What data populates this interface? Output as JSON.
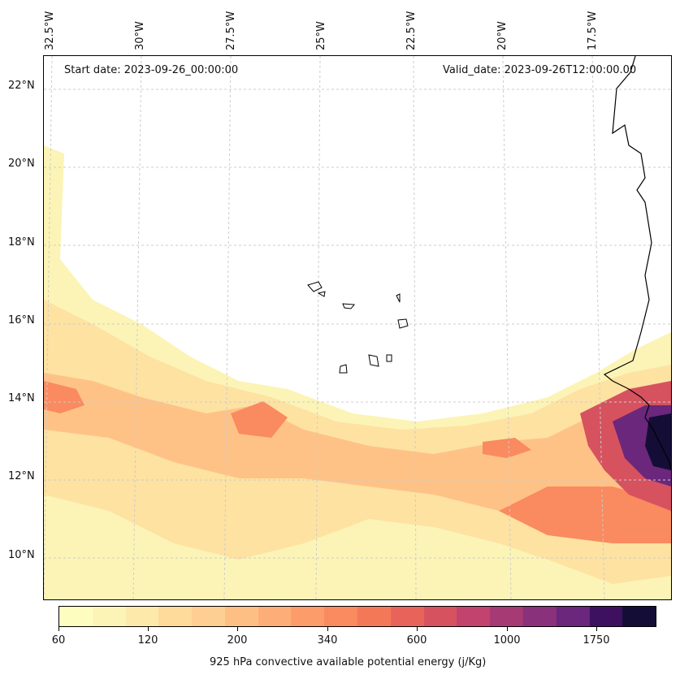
{
  "map": {
    "start_date": "Start date: 2023-09-26_00:00:00",
    "valid_date": "Valid_date: 2023-09-26T12:00:00.00",
    "lon_labels": [
      "32.5°W",
      "30°W",
      "27.5°W",
      "25°W",
      "22.5°W",
      "20°W",
      "17.5°W"
    ],
    "lat_labels": [
      "22°N",
      "20°N",
      "18°N",
      "16°N",
      "14°N",
      "12°N",
      "10°N"
    ]
  },
  "colorbar": {
    "label": "925 hPa convective available potential energy (j/Kg)",
    "ticks": [
      "60",
      "120",
      "200",
      "340",
      "600",
      "1000",
      "1750"
    ],
    "levels": [
      "#fcfdbf",
      "#fcf4b6",
      "#fde9a9",
      "#fedb9b",
      "#fecf92",
      "#febf84",
      "#fdae78",
      "#fc9c6b",
      "#fa8a5f",
      "#f37858",
      "#e8645a",
      "#d6525f",
      "#c2436d",
      "#a63a75",
      "#89317b",
      "#6a277b",
      "#3e1160",
      "#140e36"
    ]
  },
  "chart_data": {
    "type": "heatmap",
    "variable": "925 hPa convective available potential energy (j/Kg)",
    "x_range": [
      "32.5°W",
      "15.5°W"
    ],
    "y_range": [
      "9°N",
      "22.5°N"
    ],
    "max_region": "West African coast near 13°N, 16°W (> 1750)"
  }
}
